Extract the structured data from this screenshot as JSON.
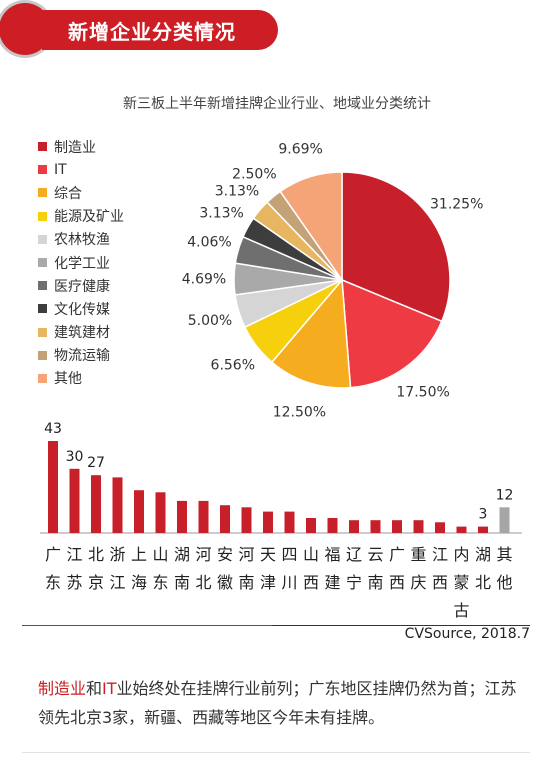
{
  "header": {
    "title": "新增企业分类情况"
  },
  "chart_data": [
    {
      "type": "pie",
      "title": "新三板上半年新增挂牌企业行业、地域业分类统计",
      "categories": [
        "制造业",
        "IT",
        "综合",
        "能源及矿业",
        "农林牧渔",
        "化学工业",
        "医疗健康",
        "文化传媒",
        "建筑建材",
        "物流运输",
        "其他"
      ],
      "values": [
        31.25,
        17.5,
        12.5,
        6.56,
        5.0,
        4.69,
        4.06,
        3.13,
        3.13,
        2.5,
        9.69
      ],
      "labels": [
        "31.25%",
        "17.50%",
        "12.50%",
        "6.56%",
        "5.00%",
        "4.69%",
        "4.06%",
        "3.13%",
        "3.13%",
        "2.50%",
        "9.69%"
      ],
      "colors": [
        "#c8202a",
        "#ee3a43",
        "#f5ad1f",
        "#f6d00c",
        "#d5d5d5",
        "#a9a9a9",
        "#6f6f6f",
        "#3d3d3d",
        "#e6b760",
        "#c3a277",
        "#f5a478"
      ],
      "legend_position": "left"
    },
    {
      "type": "bar",
      "categories": [
        "广东",
        "江苏",
        "北京",
        "浙江",
        "上海",
        "山东",
        "湖南",
        "河北",
        "安徽",
        "河南",
        "天津",
        "四川",
        "山西",
        "福建",
        "辽宁",
        "云南",
        "广西",
        "重庆",
        "江西",
        "内蒙古",
        "湖北",
        "其他"
      ],
      "values": [
        43,
        30,
        27,
        26,
        20,
        19,
        15,
        15,
        13,
        12,
        10,
        10,
        7,
        7,
        6,
        6,
        6,
        6,
        5,
        3,
        3,
        12
      ],
      "data_labels": [
        "43",
        "30",
        "27",
        "",
        "",
        "",
        "",
        "",
        "",
        "",
        "",
        "",
        "",
        "",
        "",
        "",
        "",
        "",
        "",
        "",
        "3",
        "12"
      ],
      "colors": [
        "#c8202a",
        "#a6a6a6"
      ]
    }
  ],
  "source": "CVSource, 2018.7",
  "note": {
    "hl1": "制造业",
    "t1": "和",
    "hl2": "IT",
    "t2": "业始终处在挂牌行业前列；广东地区挂牌仍然为首；江苏领先北京3家，新疆、西藏等地区今年未有挂牌。"
  }
}
